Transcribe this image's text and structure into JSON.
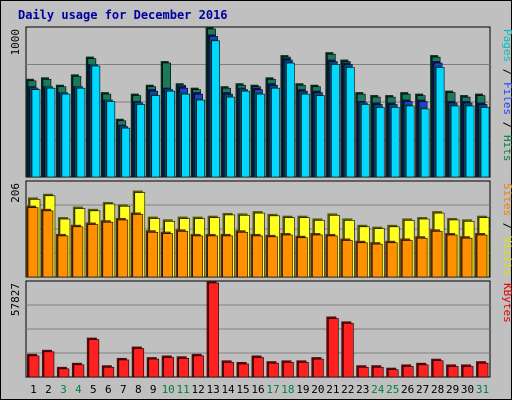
{
  "chart_data": {
    "type": "bar",
    "title": "Daily usage for December 2016",
    "categories": [
      "1",
      "2",
      "3",
      "4",
      "5",
      "6",
      "7",
      "8",
      "9",
      "10",
      "11",
      "12",
      "13",
      "14",
      "15",
      "16",
      "17",
      "18",
      "19",
      "20",
      "21",
      "22",
      "23",
      "24",
      "25",
      "26",
      "27",
      "28",
      "29",
      "30",
      "31"
    ],
    "weekend_days": [
      3,
      4,
      10,
      11,
      17,
      18,
      24,
      25,
      31
    ],
    "panels": [
      {
        "name": "hits-files-pages",
        "ymax": 1000,
        "ymax_label": "1000",
        "right_label_parts": [
          {
            "text": "Pages",
            "color": "#00c0c0"
          },
          {
            "text": " / ",
            "color": "#000000"
          },
          {
            "text": "Files",
            "color": "#2040ff"
          },
          {
            "text": " / ",
            "color": "#000000"
          },
          {
            "text": "Hits",
            "color": "#008040"
          }
        ],
        "series": [
          {
            "name": "Hits",
            "color": "#1a7a5a",
            "values": [
              650,
              660,
              610,
              680,
              800,
              560,
              380,
              550,
              610,
              770,
              620,
              590,
              1000,
              600,
              620,
              610,
              660,
              810,
              620,
              610,
              830,
              780,
              560,
              540,
              540,
              560,
              550,
              810,
              570,
              540,
              550
            ]
          },
          {
            "name": "Files",
            "color": "#2040d8",
            "values": [
              600,
              600,
              560,
              600,
              750,
              510,
              340,
              500,
              580,
              590,
              600,
              560,
              950,
              560,
              590,
              590,
              620,
              790,
              580,
              570,
              780,
              760,
              500,
              490,
              490,
              510,
              510,
              770,
              500,
              500,
              490
            ]
          },
          {
            "name": "Pages",
            "color": "#00d8ff",
            "values": [
              590,
              600,
              560,
              600,
              750,
              510,
              330,
              490,
              550,
              580,
              560,
              520,
              920,
              540,
              580,
              560,
              600,
              770,
              560,
              550,
              760,
              740,
              490,
              470,
              470,
              480,
              460,
              740,
              480,
              480,
              470
            ]
          }
        ]
      },
      {
        "name": "visits-sites",
        "ymax": 206,
        "ymax_label": "206",
        "right_label_parts": [
          {
            "text": "Sites",
            "color": "#f08000"
          },
          {
            "text": " / ",
            "color": "#000000"
          },
          {
            "text": "Visits",
            "color": "#e0e000"
          }
        ],
        "series": [
          {
            "name": "Visits",
            "color": "#ffff20",
            "values": [
              170,
              178,
              127,
              150,
              145,
              160,
              155,
              185,
              128,
              122,
              128,
              128,
              130,
              136,
              135,
              140,
              134,
              130,
              130,
              124,
              135,
              124,
              110,
              106,
              110,
              124,
              127,
              140,
              125,
              122,
              130
            ]
          },
          {
            "name": "Sites",
            "color": "#ff9000",
            "values": [
              152,
              145,
              90,
              110,
              115,
              120,
              125,
              137,
              98,
              95,
              100,
              90,
              90,
              90,
              98,
              90,
              88,
              92,
              86,
              92,
              90,
              80,
              75,
              72,
              75,
              80,
              85,
              100,
              92,
              85,
              92
            ]
          }
        ]
      },
      {
        "name": "kbytes",
        "ymax": 57827,
        "ymax_label": "57827",
        "right_label_parts": [
          {
            "text": "KBytes",
            "color": "#e00000"
          }
        ],
        "series": [
          {
            "name": "KBytes",
            "color": "#ff2020",
            "values": [
              13000,
              15500,
              5000,
              7500,
              23000,
              6000,
              10500,
              17500,
              11000,
              12000,
              11500,
              13000,
              57827,
              9000,
              8000,
              12000,
              8500,
              9000,
              9000,
              11000,
              36000,
              33000,
              6000,
              6000,
              4500,
              6500,
              7500,
              10000,
              6500,
              6500,
              8500
            ]
          }
        ]
      }
    ]
  }
}
